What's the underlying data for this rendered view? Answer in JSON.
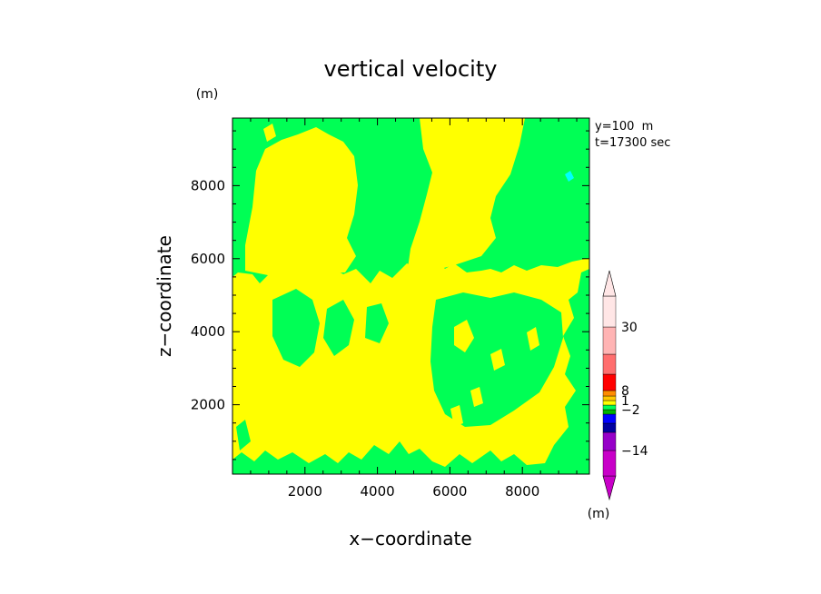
{
  "chart_data": {
    "type": "heatmap",
    "title": "vertical velocity",
    "xlabel": "x−coordinate",
    "ylabel": "z−coordinate",
    "x_unit": "(m)",
    "y_unit": "(m)",
    "annotations": [
      "y=100  m",
      "t=17300 sec"
    ],
    "xlim": [
      0,
      9850
    ],
    "ylim": [
      100,
      9850
    ],
    "x_ticks": [
      {
        "value": 2000,
        "label": "2000"
      },
      {
        "value": 4000,
        "label": "4000"
      },
      {
        "value": 6000,
        "label": "6000"
      },
      {
        "value": 8000,
        "label": "8000"
      }
    ],
    "y_ticks": [
      {
        "value": 2000,
        "label": "2000"
      },
      {
        "value": 4000,
        "label": "4000"
      },
      {
        "value": 6000,
        "label": "6000"
      },
      {
        "value": 8000,
        "label": "8000"
      }
    ],
    "fill_colors": {
      "positive_small": "#ffff00",
      "negative_small": "#00ff55",
      "updraft_spot": "#00ffff"
    },
    "colorbar": {
      "bins": [
        {
          "color": "#c800c8"
        },
        {
          "color": "#9600c8"
        },
        {
          "color": "#0000a0"
        },
        {
          "color": "#0000ff"
        },
        {
          "color": "#00b400"
        },
        {
          "color": "#00ff55"
        },
        {
          "color": "#ffff00"
        },
        {
          "color": "#ffc800"
        },
        {
          "color": "#ff8c00"
        },
        {
          "color": "#ff0000"
        },
        {
          "color": "#ff6e6e"
        },
        {
          "color": "#ffb4b4"
        },
        {
          "color": "#ffe6e6"
        }
      ],
      "labels": [
        {
          "value": 30,
          "label": "30"
        },
        {
          "value": 8,
          "label": "8"
        },
        {
          "value": 1,
          "label": "1"
        },
        {
          "value": -2,
          "label": "−2"
        },
        {
          "value": -14,
          "label": "−14"
        }
      ],
      "unit": "(m)"
    }
  }
}
